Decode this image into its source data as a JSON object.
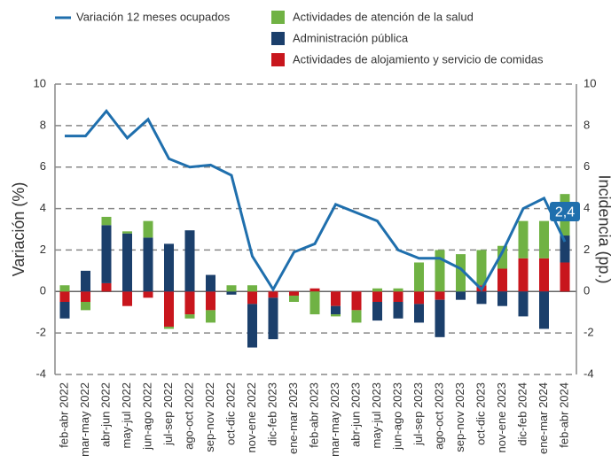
{
  "chart_data": {
    "type": "bar",
    "y_label": "Variación (%)",
    "y2_label": "Incidencia (pp.)",
    "categories": [
      "feb-abr 2022",
      "mar-may 2022",
      "abr-jun 2022",
      "may-jul 2022",
      "jun-ago 2022",
      "jul-sep 2022",
      "ago-oct 2022",
      "sep-nov 2022",
      "oct-dic 2022",
      "nov-ene 2022",
      "dic-feb 2023",
      "ene-mar 2023",
      "feb-abr 2023",
      "mar-may 2023",
      "abr-jun 2023",
      "may-jul 2023",
      "jun-ago 2023",
      "jul-sep 2023",
      "ago-oct 2023",
      "sep-nov 2023",
      "oct-dic 2023",
      "nov-ene 2023",
      "dic-feb 2024",
      "ene-mar 2024",
      "feb-abr 2024"
    ],
    "series": [
      {
        "name": "Variación 12 meses ocupados",
        "type": "line",
        "color": "#1f6fad",
        "values": [
          7.5,
          7.5,
          8.7,
          7.4,
          8.3,
          6.4,
          6.0,
          6.1,
          5.6,
          1.7,
          0.1,
          1.9,
          2.3,
          4.2,
          3.8,
          3.4,
          2.0,
          1.6,
          1.6,
          1.1,
          0.1,
          1.9,
          4.0,
          4.5,
          2.4
        ],
        "value_labels": [
          null,
          null,
          null,
          null,
          null,
          null,
          null,
          null,
          null,
          null,
          null,
          null,
          null,
          null,
          null,
          null,
          null,
          null,
          null,
          null,
          null,
          null,
          null,
          null,
          "2,4"
        ]
      },
      {
        "name": "Actividades de atención de la salud",
        "type": "bar",
        "axis": "y2",
        "color": "#70b244",
        "values": [
          0.3,
          -0.4,
          0.4,
          0.1,
          0.8,
          -0.1,
          -0.2,
          -0.6,
          0.3,
          0.3,
          0,
          -0.3,
          -1.1,
          -0.1,
          -0.6,
          0.15,
          0.15,
          1.4,
          2.0,
          1.8,
          1.7,
          1.1,
          1.8,
          1.8,
          2.0
        ]
      },
      {
        "name": "Administración pública",
        "type": "bar",
        "axis": "y2",
        "color": "#1b3f6b",
        "values": [
          -0.8,
          1.0,
          2.8,
          2.8,
          2.6,
          2.3,
          2.95,
          0.8,
          -0.15,
          -2.1,
          -2.0,
          0,
          0,
          -0.4,
          0,
          -0.9,
          -0.8,
          -0.9,
          -1.8,
          -0.4,
          -0.6,
          -0.7,
          -1.2,
          -1.8,
          1.3
        ]
      },
      {
        "name": "Actividades de alojamiento y servicio de comidas",
        "type": "bar",
        "axis": "y2",
        "color": "#c8161d",
        "values": [
          -0.5,
          -0.5,
          0.4,
          -0.7,
          -0.3,
          -1.7,
          -1.1,
          -0.9,
          0,
          -0.6,
          -0.3,
          -0.2,
          0.15,
          -0.7,
          -0.9,
          -0.5,
          -0.5,
          -0.6,
          -0.4,
          0,
          0.3,
          1.1,
          1.6,
          1.6,
          1.4
        ]
      }
    ],
    "ylim": [
      -4,
      10
    ],
    "yticks": [
      -4,
      -2,
      0,
      2,
      4,
      6,
      8,
      10
    ],
    "y2lim": [
      -4,
      10
    ],
    "y2ticks": [
      -4,
      -2,
      0,
      2,
      4,
      6,
      8,
      10
    ],
    "grid": true
  }
}
